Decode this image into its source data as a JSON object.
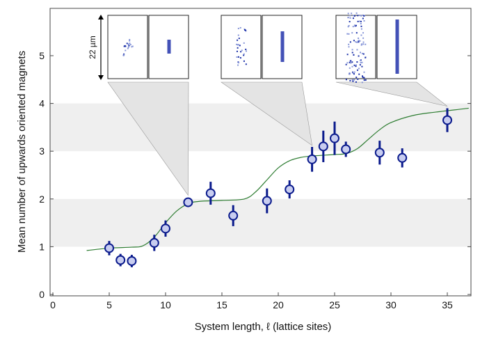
{
  "chart_data": {
    "type": "scatter",
    "xlabel": "System length, ℓ  (lattice sites)",
    "ylabel": "Mean number of upwards oriented magnets",
    "xlim": [
      0,
      37
    ],
    "ylim": [
      0,
      6
    ],
    "xticks": [
      0,
      5,
      10,
      15,
      20,
      25,
      30,
      35
    ],
    "yticks": [
      0,
      1,
      2,
      3,
      4,
      5
    ],
    "grid": false,
    "shaded_bands": [
      [
        1,
        2
      ],
      [
        3,
        4
      ]
    ],
    "points": [
      {
        "x": 5,
        "y": 0.97,
        "err": 0.15
      },
      {
        "x": 6,
        "y": 0.72,
        "err": 0.13
      },
      {
        "x": 7,
        "y": 0.7,
        "err": 0.13
      },
      {
        "x": 9,
        "y": 1.08,
        "err": 0.17
      },
      {
        "x": 10,
        "y": 1.38,
        "err": 0.17
      },
      {
        "x": 12,
        "y": 1.93,
        "err": 0.05
      },
      {
        "x": 14,
        "y": 2.12,
        "err": 0.24
      },
      {
        "x": 16,
        "y": 1.65,
        "err": 0.22
      },
      {
        "x": 19,
        "y": 1.96,
        "err": 0.26
      },
      {
        "x": 21,
        "y": 2.2,
        "err": 0.19
      },
      {
        "x": 23,
        "y": 2.83,
        "err": 0.26
      },
      {
        "x": 24,
        "y": 3.1,
        "err": 0.33
      },
      {
        "x": 25,
        "y": 3.27,
        "err": 0.35
      },
      {
        "x": 26,
        "y": 3.04,
        "err": 0.16
      },
      {
        "x": 29,
        "y": 2.97,
        "err": 0.25
      },
      {
        "x": 31,
        "y": 2.86,
        "err": 0.2
      },
      {
        "x": 35,
        "y": 3.65,
        "err": 0.25
      }
    ],
    "fit_curve": [
      [
        3,
        0.92
      ],
      [
        5,
        0.97
      ],
      [
        7,
        0.99
      ],
      [
        8,
        1.02
      ],
      [
        9,
        1.2
      ],
      [
        10,
        1.5
      ],
      [
        11,
        1.75
      ],
      [
        12,
        1.9
      ],
      [
        13,
        1.95
      ],
      [
        15,
        1.97
      ],
      [
        17,
        2.0
      ],
      [
        18,
        2.15
      ],
      [
        19,
        2.4
      ],
      [
        20,
        2.65
      ],
      [
        21,
        2.8
      ],
      [
        22,
        2.87
      ],
      [
        23,
        2.9
      ],
      [
        25,
        2.93
      ],
      [
        26,
        2.95
      ],
      [
        27,
        3.05
      ],
      [
        28,
        3.25
      ],
      [
        29,
        3.45
      ],
      [
        30,
        3.6
      ],
      [
        32,
        3.75
      ],
      [
        34,
        3.82
      ],
      [
        37,
        3.9
      ]
    ],
    "inset_scale_label": "22 µm",
    "insets_point_to_x": [
      12,
      23,
      35
    ],
    "colors": {
      "marker_fill": "#c8cdf0",
      "marker_edge": "#0a1a8c",
      "fit": "#2e7d32",
      "band": "#efefef"
    }
  }
}
